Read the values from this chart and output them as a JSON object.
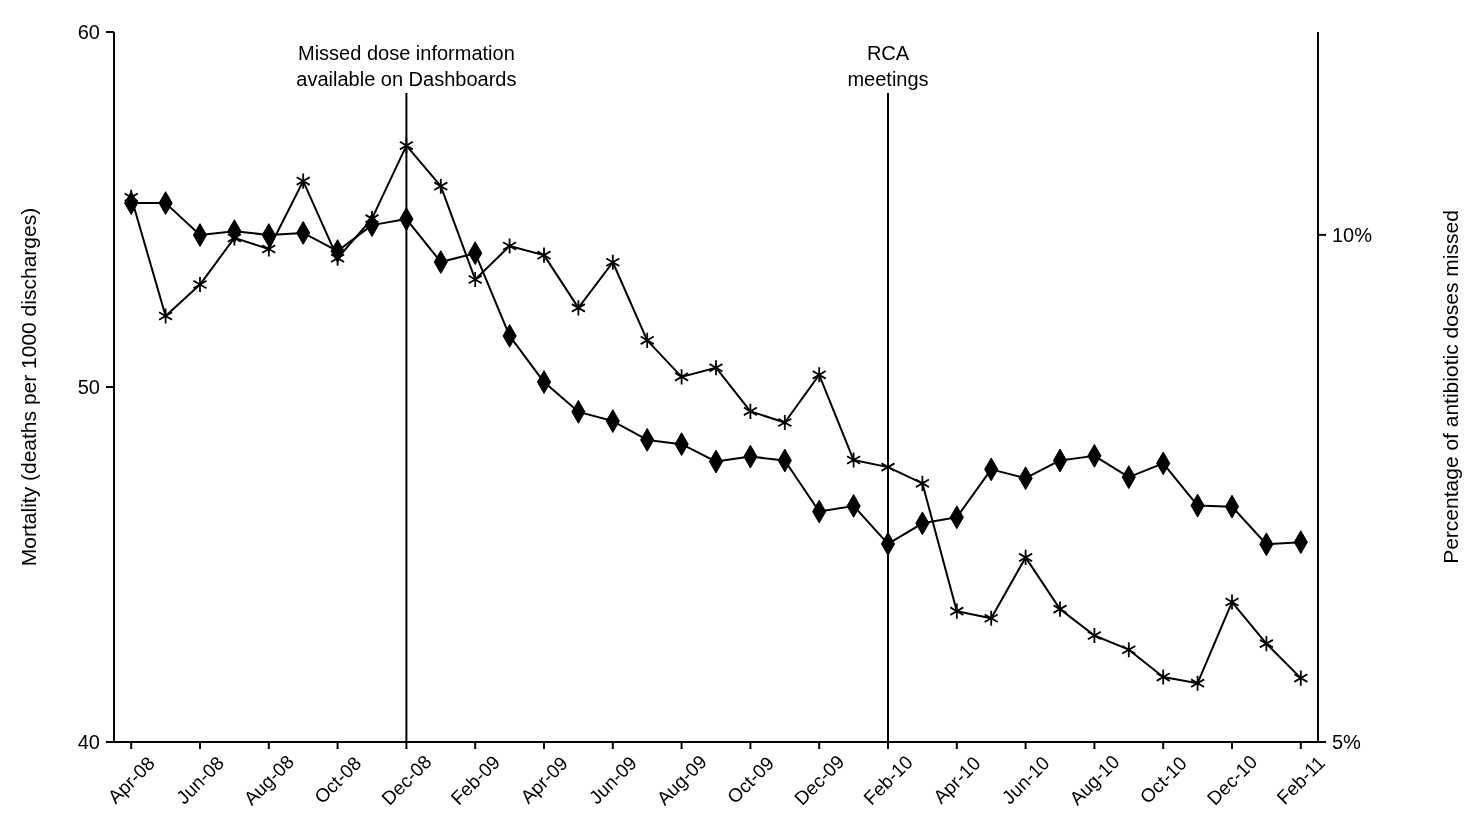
{
  "chart_data": {
    "type": "line",
    "ylabel": "Mortality (deaths per 1000 discharges)",
    "y2label": "Percentage of antibiotic doses missed",
    "categories": [
      "Apr-08",
      null,
      "Jun-08",
      null,
      "Aug-08",
      null,
      "Oct-08",
      null,
      "Dec-08",
      null,
      "Feb-09",
      null,
      "Apr-09",
      null,
      "Jun-09",
      null,
      "Aug-09",
      null,
      "Oct-09",
      null,
      "Dec-09",
      null,
      "Feb-10",
      null,
      "Apr-10",
      null,
      "Jun-10",
      null,
      "Aug-10",
      null,
      "Oct-10",
      null,
      "Dec-10",
      null,
      "Feb-11"
    ],
    "series": [
      {
        "color": "#000000",
        "marker": "diamond",
        "values": [
          55.18,
          55.18,
          54.28,
          54.39,
          54.28,
          54.34,
          53.83,
          54.56,
          54.73,
          53.52,
          53.77,
          51.44,
          50.14,
          49.3,
          49.04,
          48.51,
          48.39,
          47.9,
          48.04,
          47.93,
          46.49,
          46.65,
          45.58,
          46.16,
          46.33,
          47.68,
          47.43,
          47.93,
          48.06,
          47.46,
          47.85,
          46.66,
          46.63,
          45.57,
          45.63
        ]
      },
      {
        "color": "#000000",
        "marker": "cross",
        "axis": "y2",
        "values": [
          10.37,
          9.2,
          9.51,
          9.97,
          9.86,
          10.53,
          9.77,
          10.16,
          10.88,
          10.48,
          9.56,
          9.89,
          9.8,
          9.28,
          9.73,
          8.96,
          8.6,
          8.69,
          8.26,
          8.15,
          8.62,
          7.78,
          7.71,
          7.55,
          6.29,
          6.22,
          6.82,
          6.31,
          6.05,
          5.91,
          5.64,
          5.58,
          6.38,
          5.97,
          5.63
        ]
      }
    ],
    "ylim": [
      40,
      60
    ],
    "yticks": [
      40,
      50,
      60
    ],
    "y2lim": [
      5,
      12
    ],
    "y2ticks": [
      {
        "value": 5,
        "label": "5%"
      },
      {
        "value": 10,
        "label": "10%"
      }
    ],
    "ref_lines": [
      {
        "axis": "x",
        "value": "Dec-08",
        "label": "Missed dose information\navailable on Dashboards",
        "color": "#000000"
      },
      {
        "axis": "x",
        "value": "Feb-10",
        "label": "RCA\nmeetings",
        "color": "#000000"
      }
    ],
    "grid": false
  }
}
